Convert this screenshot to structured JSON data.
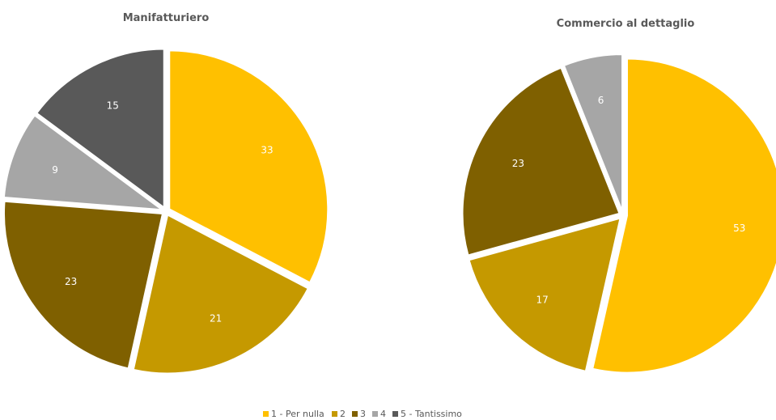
{
  "chart_data": [
    {
      "type": "pie",
      "title": "Manifatturiero",
      "categories": [
        "1 - Per nulla",
        "2",
        "3",
        "4",
        "5 - Tantissimo"
      ],
      "values": [
        33,
        21,
        23,
        9,
        15
      ]
    },
    {
      "type": "pie",
      "title": "Commercio al dettaglio",
      "categories": [
        "1 - Per nulla",
        "2",
        "3",
        "4",
        "5 - Tantissimo"
      ],
      "values": [
        53,
        17,
        23,
        6,
        0
      ]
    }
  ],
  "legend": {
    "placement": "bottom",
    "entries": [
      "1 - Per nulla",
      "2",
      "3",
      "4",
      "5 - Tantissimo"
    ]
  },
  "colors": [
    "#ffc000",
    "#c59900",
    "#7f6000",
    "#a6a6a6",
    "#595959"
  ]
}
